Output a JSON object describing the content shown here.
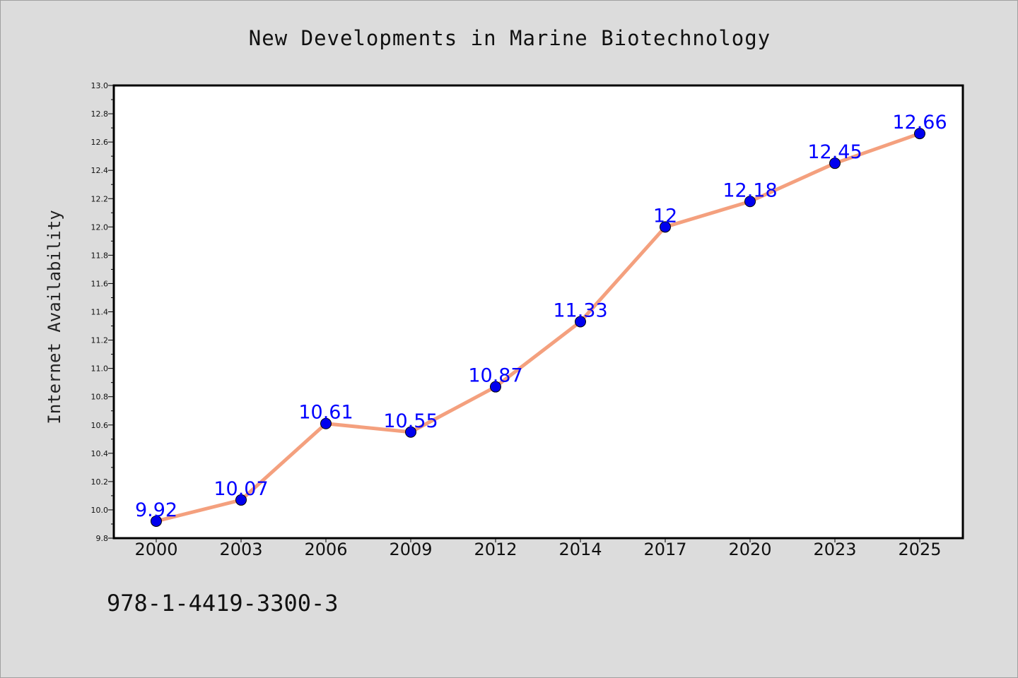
{
  "footnote": "978-1-4419-3300-3",
  "chart_data": {
    "type": "line",
    "title": "New Developments in Marine Biotechnology",
    "xlabel": "",
    "ylabel": "Internet Availability",
    "categories": [
      "2000",
      "2003",
      "2006",
      "2009",
      "2012",
      "2014",
      "2017",
      "2020",
      "2023",
      "2025"
    ],
    "series": [
      {
        "values": [
          9.92,
          10.07,
          10.61,
          10.55,
          10.87,
          11.33,
          12,
          12.18,
          12.45,
          12.66
        ],
        "labels": [
          "9.92",
          "10.07",
          "10.61",
          "10.55",
          "10.87",
          "11.33",
          "12",
          "12.18",
          "12.45",
          "12.66"
        ]
      }
    ],
    "ylim": [
      9.8,
      13.0
    ],
    "yticks": [
      "9.8",
      "10.0",
      "10.2",
      "10.4",
      "10.6",
      "10.8",
      "11.0",
      "11.2",
      "11.4",
      "11.6",
      "11.8",
      "12.0",
      "12.2",
      "12.4",
      "12.6",
      "12.8",
      "13.0"
    ],
    "grid": false,
    "legend": "none",
    "colors": {
      "line": "#f4a07e",
      "marker": "#0000ee",
      "data_label": "#0000ff",
      "plot_background": "#ffffff",
      "figure_background": "#dcdcdc"
    }
  }
}
